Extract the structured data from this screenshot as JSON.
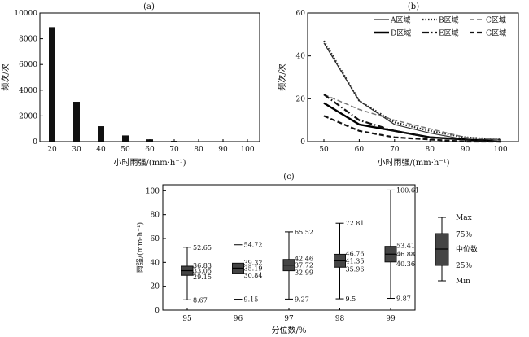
{
  "chart_data": [
    {
      "panel": "(a)",
      "type": "bar",
      "xlabel": "小时雨强/(mm·h⁻¹)",
      "ylabel": "频次/次",
      "categories": [
        "20",
        "30",
        "40",
        "50",
        "60",
        "70",
        "80",
        "90",
        "100"
      ],
      "values": [
        8900,
        3100,
        1200,
        480,
        180,
        60,
        20,
        8,
        3
      ],
      "ylim": [
        0,
        10000
      ],
      "yticks": [
        "0",
        "2000",
        "4000",
        "6000",
        "8000",
        "10000"
      ],
      "grid": false
    },
    {
      "panel": "(b)",
      "type": "line",
      "xlabel": "小时雨强/(mm·h⁻¹)",
      "ylabel": "频次/次",
      "x": [
        "50",
        "60",
        "70",
        "80",
        "90",
        "100"
      ],
      "ylim": [
        0,
        60
      ],
      "yticks": [
        "0",
        "20",
        "40",
        "60"
      ],
      "legend_position": "top-right",
      "series": [
        {
          "name": "A区域",
          "values": [
            46,
            19,
            8,
            4,
            1,
            1
          ],
          "color": "#333333",
          "dash": "",
          "width": 1.2
        },
        {
          "name": "B区域",
          "values": [
            47,
            19,
            9,
            5,
            2,
            1
          ],
          "color": "#222222",
          "dash": "1.5,2",
          "width": 2.2
        },
        {
          "name": "C区域",
          "values": [
            22,
            15,
            10,
            6,
            2,
            1
          ],
          "color": "#777777",
          "dash": "6,3",
          "width": 1.5
        },
        {
          "name": "D区域",
          "values": [
            18,
            8,
            5,
            2,
            1,
            0
          ],
          "color": "#000000",
          "dash": "",
          "width": 2.4
        },
        {
          "name": "E区域",
          "values": [
            22,
            10,
            5,
            2,
            1,
            0
          ],
          "color": "#111111",
          "dash": "8,3,1.5,3",
          "width": 2.2
        },
        {
          "name": "G区域",
          "values": [
            12,
            5,
            2,
            1,
            0,
            0
          ],
          "color": "#111111",
          "dash": "6,3",
          "width": 2.2
        }
      ],
      "grid": false
    },
    {
      "panel": "(c)",
      "type": "box",
      "xlabel": "分位数/%",
      "ylabel": "雨强/(mm·h⁻¹)",
      "categories": [
        "95",
        "96",
        "97",
        "98",
        "99"
      ],
      "ylim": [
        0,
        100
      ],
      "yticks": [
        "0",
        "20",
        "40",
        "60",
        "80",
        "100"
      ],
      "boxes": [
        {
          "min": 8.67,
          "q1": 29.15,
          "median": 33.05,
          "q3": 36.83,
          "max": 52.65
        },
        {
          "min": 9.15,
          "q1": 30.84,
          "median": 35.19,
          "q3": 39.32,
          "max": 54.72
        },
        {
          "min": 9.27,
          "q1": 32.99,
          "median": 37.72,
          "q3": 42.46,
          "max": 65.52
        },
        {
          "min": 9.5,
          "q1": 35.96,
          "median": 41.35,
          "q3": 46.76,
          "max": 72.81
        },
        {
          "min": 9.87,
          "q1": 40.36,
          "median": 46.88,
          "q3": 53.41,
          "max": 100.61
        }
      ],
      "labels": [
        {
          "min": "8.67",
          "q1": "29.15",
          "median": "33.05",
          "q3": "36.83",
          "max": "52.65"
        },
        {
          "min": "9.15",
          "q1": "30.84",
          "median": "35.19",
          "q3": "39.32",
          "max": "54.72"
        },
        {
          "min": "9.27",
          "q1": "32.99",
          "median": "37.72",
          "q3": "42.46",
          "max": "65.52"
        },
        {
          "min": "9.5",
          "q1": "35.96",
          "median": "41.35",
          "q3": "46.76",
          "max": "72.81"
        },
        {
          "min": "9.87",
          "q1": "40.36",
          "median": "46.88",
          "q3": "53.41",
          "max": "100.61"
        }
      ],
      "legend": {
        "max": "Max",
        "q3": "75%",
        "median": "中位数",
        "q1": "25%",
        "min": "Min"
      },
      "grid": false
    }
  ]
}
